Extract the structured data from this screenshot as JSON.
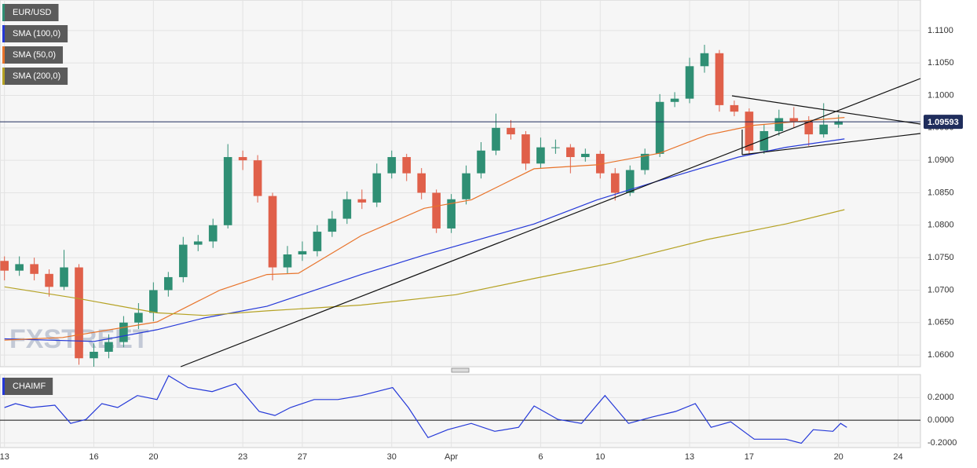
{
  "chart_data": [
    {
      "type": "candlestick",
      "name": "EUR/USD",
      "watermark": "FXSTREET",
      "up_color": "#2f8f74",
      "down_color": "#e0604a",
      "x": [
        0,
        0.5,
        1,
        1.5,
        2,
        2.5,
        3,
        3.5,
        4,
        4.5,
        5,
        5.5,
        6,
        6.5,
        7,
        7.5,
        8,
        8.5,
        9,
        9.5,
        10,
        10.5,
        11,
        11.5,
        12,
        12.5,
        13,
        13.5,
        14,
        14.5,
        15,
        15.5,
        16,
        16.5,
        17,
        17.5,
        18,
        18.5,
        19,
        19.5,
        20,
        20.5,
        21,
        21.5,
        22,
        22.5,
        23,
        23.5,
        24,
        24.5,
        25,
        25.5,
        26,
        26.5,
        27,
        27.5,
        28
      ],
      "open": [
        1.0745,
        1.073,
        1.074,
        1.0725,
        1.0705,
        1.0735,
        1.0595,
        1.0605,
        1.062,
        1.065,
        1.0665,
        1.07,
        1.072,
        1.077,
        1.0775,
        1.08,
        1.0905,
        1.09,
        1.0845,
        1.0735,
        1.0755,
        1.076,
        1.079,
        1.081,
        1.084,
        1.0835,
        1.088,
        1.0905,
        1.088,
        1.085,
        1.0795,
        1.084,
        1.088,
        1.0915,
        1.095,
        1.094,
        1.0895,
        1.092,
        1.092,
        1.0905,
        1.091,
        1.088,
        1.085,
        1.0885,
        1.091,
        1.099,
        1.0995,
        1.1045,
        1.1065,
        1.0985,
        1.0975,
        1.0915,
        1.0945,
        1.0965,
        1.096,
        1.094,
        1.0955
      ],
      "high": [
        1.0752,
        1.0752,
        1.075,
        1.0732,
        1.0762,
        1.074,
        1.0618,
        1.0632,
        1.066,
        1.068,
        1.0712,
        1.0728,
        1.0782,
        1.0785,
        1.081,
        1.0925,
        1.0915,
        1.0908,
        1.085,
        1.0768,
        1.0775,
        1.08,
        1.0822,
        1.0852,
        1.0855,
        1.0895,
        1.0915,
        1.091,
        1.0888,
        1.0855,
        1.0848,
        1.0892,
        1.0928,
        1.0972,
        1.0962,
        1.0945,
        1.0935,
        1.0932,
        1.0925,
        1.0918,
        1.0915,
        1.0888,
        1.0892,
        1.0918,
        1.1002,
        1.1005,
        1.1058,
        1.1078,
        1.107,
        1.0992,
        1.098,
        1.0955,
        1.0978,
        1.0982,
        1.0968,
        1.0988,
        1.097
      ],
      "low": [
        1.0715,
        1.0722,
        1.0715,
        1.069,
        1.07,
        1.0585,
        1.0582,
        1.0595,
        1.0612,
        1.064,
        1.0652,
        1.069,
        1.0712,
        1.076,
        1.0765,
        1.0795,
        1.0885,
        1.0835,
        1.0715,
        1.0725,
        1.0745,
        1.0752,
        1.0782,
        1.0802,
        1.0825,
        1.0828,
        1.0872,
        1.0868,
        1.084,
        1.0788,
        1.0788,
        1.0832,
        1.0872,
        1.0908,
        1.0932,
        1.0885,
        1.0888,
        1.091,
        1.088,
        1.0898,
        1.0872,
        1.0838,
        1.0845,
        1.0878,
        1.0905,
        1.0982,
        1.0988,
        1.1035,
        1.0975,
        1.0968,
        1.0908,
        1.091,
        1.0938,
        1.095,
        1.0922,
        1.0935,
        1.095
      ],
      "close": [
        1.073,
        1.074,
        1.0725,
        1.0705,
        1.0735,
        1.0595,
        1.0605,
        1.062,
        1.065,
        1.0665,
        1.07,
        1.072,
        1.077,
        1.0775,
        1.08,
        1.0905,
        1.09,
        1.0845,
        1.0735,
        1.0755,
        1.076,
        1.079,
        1.081,
        1.084,
        1.0835,
        1.088,
        1.0905,
        1.088,
        1.085,
        1.0795,
        1.084,
        1.088,
        1.0915,
        1.095,
        1.094,
        1.0895,
        1.092,
        1.092,
        1.0905,
        1.091,
        1.088,
        1.085,
        1.0885,
        1.091,
        1.099,
        1.0995,
        1.1045,
        1.1065,
        1.0985,
        1.0975,
        1.0915,
        1.0945,
        1.0965,
        1.096,
        1.094,
        1.0955,
        1.096
      ],
      "series": [
        {
          "name": "SMA (100,0)",
          "color": "#2438d8",
          "x": [
            0,
            3.01,
            5.12,
            6.7,
            8.81,
            11.98,
            14.09,
            17.78,
            19.89,
            22.0,
            24.64,
            26.23,
            28.2
          ],
          "values": [
            1.0625,
            1.0621,
            1.0639,
            1.0657,
            1.0675,
            1.0724,
            1.0754,
            1.0802,
            1.0839,
            1.0869,
            1.0905,
            1.092,
            1.0933
          ]
        },
        {
          "name": "SMA (50,0)",
          "color": "#e8732a",
          "x": [
            0,
            1.95,
            5.12,
            7.23,
            8.81,
            9.87,
            11.98,
            14.09,
            15.67,
            17.78,
            19.89,
            22.0,
            23.59,
            25.17,
            28.2
          ],
          "values": [
            1.0623,
            1.0627,
            1.0651,
            1.07,
            1.0724,
            1.0726,
            1.0784,
            1.0826,
            1.0839,
            1.0887,
            1.0893,
            1.0911,
            1.0939,
            1.0954,
            1.0966
          ]
        },
        {
          "name": "SMA (200,0)",
          "color": "#b5a224",
          "x": [
            0,
            2.48,
            5.12,
            6.7,
            8.81,
            11.98,
            15.15,
            17.78,
            20.42,
            23.59,
            26.23,
            28.2
          ],
          "values": [
            1.0705,
            1.0687,
            1.0665,
            1.0661,
            1.0668,
            1.0677,
            1.0693,
            1.0718,
            1.0742,
            1.0778,
            1.0802,
            1.0824
          ]
        }
      ],
      "current_price": 1.09593,
      "current_color": "#1f2d5c",
      "xlim": [
        -0.15,
        30.75
      ],
      "ylim": [
        1.0582,
        1.1147
      ],
      "yticks": [
        {
          "value": 1.06,
          "label": "1.0600"
        },
        {
          "value": 1.065,
          "label": "1.0650"
        },
        {
          "value": 1.07,
          "label": "1.0700"
        },
        {
          "value": 1.075,
          "label": "1.0750"
        },
        {
          "value": 1.08,
          "label": "1.0800"
        },
        {
          "value": 1.085,
          "label": "1.0850"
        },
        {
          "value": 1.09,
          "label": "1.0900"
        },
        {
          "value": 1.095,
          "label": "1.0950"
        },
        {
          "value": 1.1,
          "label": "1.1000"
        },
        {
          "value": 1.105,
          "label": "1.1050"
        },
        {
          "value": 1.11,
          "label": "1.1100"
        }
      ],
      "grid": true
    },
    {
      "type": "line",
      "series": [
        {
          "name": "CHAIMF",
          "color": "#2438d8",
          "x": [
            0,
            0.37,
            0.9,
            1.69,
            2.22,
            2.74,
            3.27,
            3.8,
            4.46,
            5.12,
            5.51,
            6.17,
            6.97,
            7.76,
            8.55,
            9.08,
            9.6,
            10.4,
            11.19,
            11.98,
            13.03,
            13.56,
            14.22,
            14.88,
            15.67,
            16.46,
            17.26,
            17.78,
            18.58,
            19.37,
            20.16,
            20.95,
            21.74,
            22.53,
            23.19,
            23.72,
            24.38,
            25.17,
            26.23,
            26.75,
            27.15,
            27.81,
            28.07,
            28.28
          ],
          "values": [
            0.112,
            0.147,
            0.112,
            0.133,
            -0.028,
            0.007,
            0.147,
            0.112,
            0.218,
            0.183,
            0.393,
            0.288,
            0.253,
            0.323,
            0.077,
            0.042,
            0.112,
            0.183,
            0.183,
            0.218,
            0.288,
            0.112,
            -0.154,
            -0.084,
            -0.028,
            -0.098,
            -0.063,
            0.126,
            0.007,
            -0.028,
            0.218,
            -0.028,
            0.028,
            0.077,
            0.147,
            -0.063,
            -0.014,
            -0.168,
            -0.168,
            -0.204,
            -0.084,
            -0.098,
            -0.028,
            -0.063
          ]
        }
      ],
      "xlim": [
        -0.15,
        30.75
      ],
      "ylim": [
        -0.242,
        0.4035
      ],
      "yticks": [
        {
          "value": -0.2,
          "label": "-0.2000"
        },
        {
          "value": 0,
          "label": "0.0000"
        },
        {
          "value": 0.2,
          "label": "0.2000"
        }
      ],
      "xticks": [
        {
          "value": 0,
          "label": "13"
        },
        {
          "value": 3,
          "label": "16"
        },
        {
          "value": 5,
          "label": "20"
        },
        {
          "value": 8,
          "label": "23"
        },
        {
          "value": 10,
          "label": "27"
        },
        {
          "value": 13,
          "label": "30"
        },
        {
          "value": 15,
          "label": "Apr"
        },
        {
          "value": 18,
          "label": "6"
        },
        {
          "value": 20,
          "label": "10"
        },
        {
          "value": 23,
          "label": "13"
        },
        {
          "value": 25,
          "label": "17"
        },
        {
          "value": 28,
          "label": "20"
        },
        {
          "value": 30,
          "label": "24"
        }
      ],
      "grid": true
    }
  ]
}
